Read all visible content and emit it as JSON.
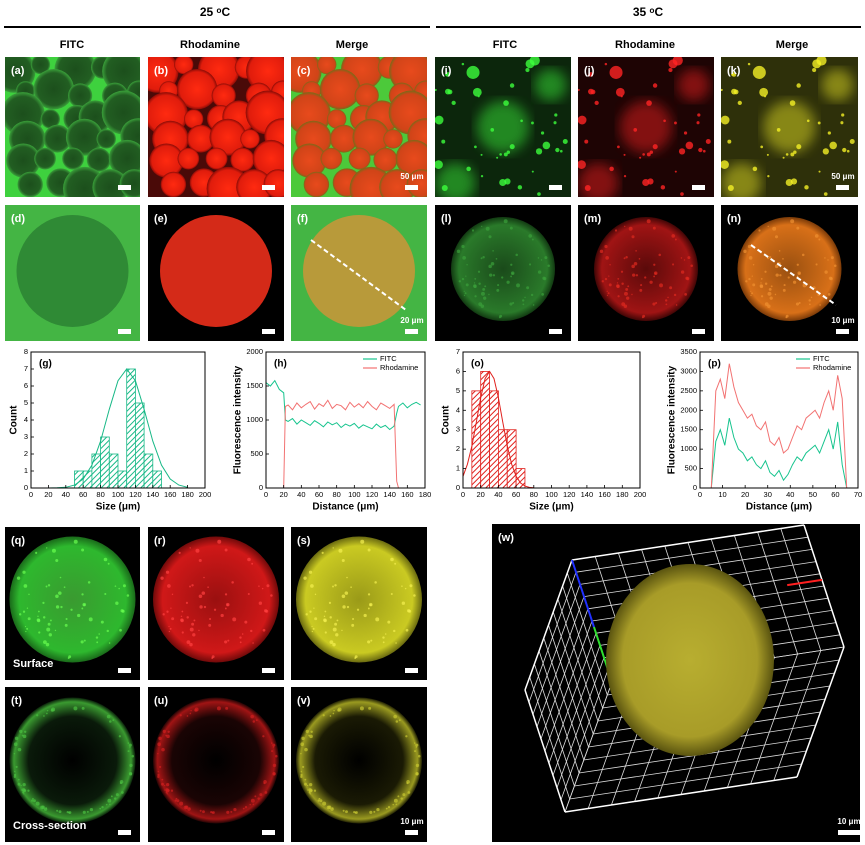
{
  "headers": [
    "25 ᵒC",
    "35 ᵒC"
  ],
  "column_labels": [
    "FITC",
    "Rhodamine",
    "Merge",
    "FITC",
    "Rhodamine",
    "Merge"
  ],
  "panels": [
    {
      "label": "(a)"
    },
    {
      "label": "(b)"
    },
    {
      "label": "(c)",
      "scale_label": "50 μm"
    },
    {
      "label": "(i)"
    },
    {
      "label": "(j)"
    },
    {
      "label": "(k)",
      "scale_label": "50 μm"
    },
    {
      "label": "(d)"
    },
    {
      "label": "(e)"
    },
    {
      "label": "(f)",
      "scale_label": "20 μm"
    },
    {
      "label": "(l)"
    },
    {
      "label": "(m)"
    },
    {
      "label": "(n)",
      "scale_label": "10 μm"
    },
    {
      "label": "(q)",
      "note": "Surface"
    },
    {
      "label": "(r)"
    },
    {
      "label": "(s)"
    },
    {
      "label": "(t)",
      "note": "Cross-section"
    },
    {
      "label": "(u)"
    },
    {
      "label": "(v)",
      "scale_label": "10 μm"
    },
    {
      "label": "(w)",
      "scale_label": "10 μm"
    }
  ],
  "chart_data": [
    {
      "type": "histogram",
      "label": "(g)",
      "xlabel": "Size (μm)",
      "ylabel": "Count",
      "bins": [
        50,
        60,
        70,
        80,
        90,
        100,
        110,
        120,
        130,
        140,
        150
      ],
      "counts": [
        1,
        1,
        2,
        3,
        2,
        1,
        7,
        5,
        2,
        1
      ],
      "color": "#17b886",
      "fit_x": [
        20,
        30,
        40,
        50,
        60,
        70,
        80,
        90,
        100,
        110,
        120,
        130,
        140,
        150,
        160,
        170,
        180
      ],
      "fit_values": [
        0.0,
        0.01,
        0.04,
        0.17,
        0.53,
        1.34,
        2.76,
        4.63,
        6.31,
        7,
        6.31,
        4.63,
        2.76,
        1.34,
        0.53,
        0.17,
        0.04
      ],
      "xlim": [
        0,
        200
      ],
      "xticks": [
        0,
        20,
        40,
        60,
        80,
        100,
        120,
        140,
        160,
        180,
        200
      ],
      "ylim": [
        0,
        8
      ],
      "yticks": [
        0,
        1,
        2,
        3,
        4,
        5,
        6,
        7,
        8
      ]
    },
    {
      "type": "line",
      "label": "(h)",
      "xlabel": "Distance (μm)",
      "ylabel": "Fluorescence intensity",
      "x": [
        0,
        5,
        10,
        15,
        20,
        22,
        25,
        30,
        35,
        40,
        45,
        50,
        55,
        60,
        65,
        70,
        75,
        80,
        85,
        90,
        95,
        100,
        105,
        110,
        115,
        120,
        125,
        130,
        135,
        140,
        145,
        148,
        150,
        155,
        160,
        165,
        170,
        175
      ],
      "series": [
        {
          "name": "FITC",
          "color": "#17c48e",
          "values": [
            1550,
            1500,
            1580,
            1450,
            1400,
            1000,
            980,
            1020,
            940,
            1000,
            960,
            920,
            990,
            950,
            900,
            970,
            930,
            960,
            890,
            940,
            910,
            950,
            880,
            930,
            900,
            870,
            940,
            890,
            920,
            860,
            910,
            1100,
            1200,
            1250,
            1180,
            1230,
            1260,
            1220
          ]
        },
        {
          "name": "Rhodamine",
          "color": "#f27272",
          "values": [
            0,
            0,
            0,
            0,
            0,
            1200,
            1220,
            1150,
            1250,
            1180,
            1230,
            1270,
            1160,
            1240,
            1200,
            1290,
            1170,
            1230,
            1210,
            1150,
            1260,
            1190,
            1240,
            1180,
            1270,
            1200,
            1150,
            1250,
            1210,
            1170,
            1230,
            100,
            0,
            0,
            0,
            0,
            0,
            0
          ]
        }
      ],
      "xlim": [
        0,
        180
      ],
      "xticks": [
        0,
        20,
        40,
        60,
        80,
        100,
        120,
        140,
        160,
        180
      ],
      "ylim": [
        0,
        2000
      ],
      "yticks": [
        0,
        500,
        1000,
        1500,
        2000
      ]
    },
    {
      "type": "histogram",
      "label": "(o)",
      "xlabel": "Size (μm)",
      "ylabel": "Count",
      "bins": [
        10,
        20,
        30,
        40,
        50,
        60,
        70
      ],
      "counts": [
        5,
        6,
        5,
        3,
        3,
        1
      ],
      "color": "#e0201c",
      "fit_x": [
        0,
        5,
        10,
        15,
        20,
        25,
        30,
        35,
        40,
        45,
        50,
        55,
        60,
        65,
        70,
        75,
        80
      ],
      "fit_values": [
        0.6,
        1.22,
        2.16,
        3.38,
        4.65,
        5.63,
        6,
        5.63,
        4.65,
        3.38,
        2.16,
        1.22,
        0.6,
        0.26,
        0.1,
        0.03,
        0.01
      ],
      "xlim": [
        0,
        200
      ],
      "xticks": [
        0,
        20,
        40,
        60,
        80,
        100,
        120,
        140,
        160,
        180,
        200
      ],
      "ylim": [
        0,
        7
      ],
      "yticks": [
        0,
        1,
        2,
        3,
        4,
        5,
        6,
        7
      ]
    },
    {
      "type": "line",
      "label": "(p)",
      "xlabel": "Distance (μm)",
      "ylabel": "Fluorescence intensity",
      "x": [
        5,
        7,
        9,
        11,
        13,
        15,
        17,
        19,
        21,
        23,
        25,
        27,
        29,
        31,
        33,
        35,
        37,
        39,
        41,
        43,
        45,
        47,
        49,
        51,
        53,
        55,
        57,
        59,
        61,
        63,
        65
      ],
      "series": [
        {
          "name": "FITC",
          "color": "#17c48e",
          "values": [
            0,
            1200,
            1500,
            1100,
            1800,
            1300,
            1000,
            900,
            700,
            800,
            600,
            500,
            700,
            400,
            300,
            450,
            200,
            350,
            600,
            800,
            700,
            900,
            1000,
            1100,
            900,
            1200,
            1500,
            1000,
            1700,
            600,
            0
          ]
        },
        {
          "name": "Rhodamine",
          "color": "#f27272",
          "values": [
            0,
            2500,
            2800,
            2300,
            3200,
            2600,
            2200,
            2000,
            1800,
            1900,
            1600,
            1500,
            1700,
            1200,
            1100,
            1300,
            900,
            1000,
            1300,
            1600,
            1500,
            1800,
            1900,
            2000,
            1800,
            2200,
            2500,
            2000,
            2900,
            2300,
            0
          ]
        }
      ],
      "xlim": [
        0,
        70
      ],
      "xticks": [
        0,
        10,
        20,
        30,
        40,
        50,
        60,
        70
      ],
      "ylim": [
        0,
        3500
      ],
      "yticks": [
        0,
        500,
        1000,
        1500,
        2000,
        2500,
        3000,
        3500
      ]
    }
  ]
}
